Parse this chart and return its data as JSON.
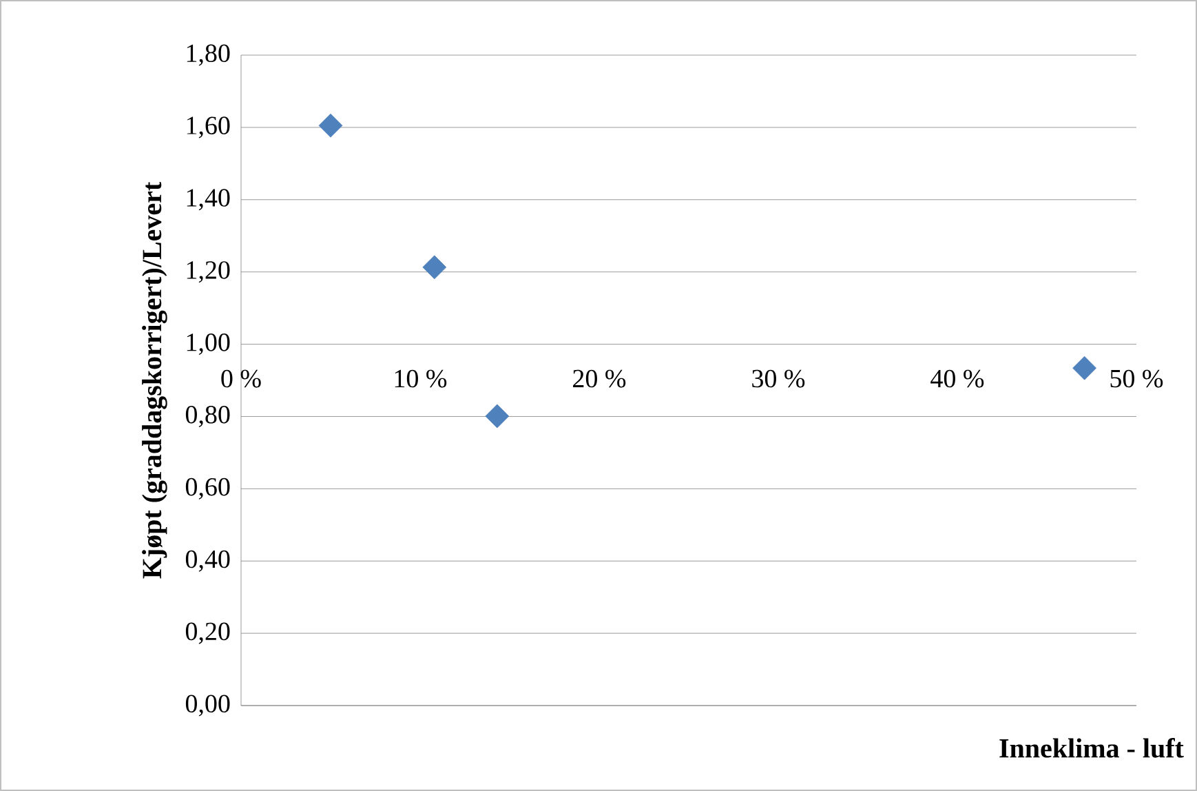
{
  "chart_data": {
    "type": "scatter",
    "xlabel": "Inneklima - luft",
    "ylabel": "Kjøpt (graddagskorrigert)/Levert",
    "x": [
      5,
      10.8,
      14.3,
      47.1
    ],
    "values": [
      1.605,
      1.213,
      0.801,
      0.934
    ],
    "color": "#4f81bd",
    "marker": "diamond",
    "grid": "y",
    "xlim": [
      0,
      50
    ],
    "xticks": [
      {
        "value": 0,
        "label": "0 %"
      },
      {
        "value": 10,
        "label": "10 %"
      },
      {
        "value": 20,
        "label": "20 %"
      },
      {
        "value": 30,
        "label": "30 %"
      },
      {
        "value": 40,
        "label": "40 %"
      },
      {
        "value": 50,
        "label": "50 %"
      }
    ],
    "ylim": [
      0,
      1.8
    ],
    "yticks": [
      {
        "value": 0,
        "label": "0,00"
      },
      {
        "value": 0.2,
        "label": "0,20"
      },
      {
        "value": 0.4,
        "label": "0,40"
      },
      {
        "value": 0.6,
        "label": "0,60"
      },
      {
        "value": 0.8,
        "label": "0,80"
      },
      {
        "value": 1.0,
        "label": "1,00"
      },
      {
        "value": 1.2,
        "label": "1,20"
      },
      {
        "value": 1.4,
        "label": "1,40"
      },
      {
        "value": 1.6,
        "label": "1,60"
      },
      {
        "value": 1.8,
        "label": "1,80"
      }
    ]
  }
}
